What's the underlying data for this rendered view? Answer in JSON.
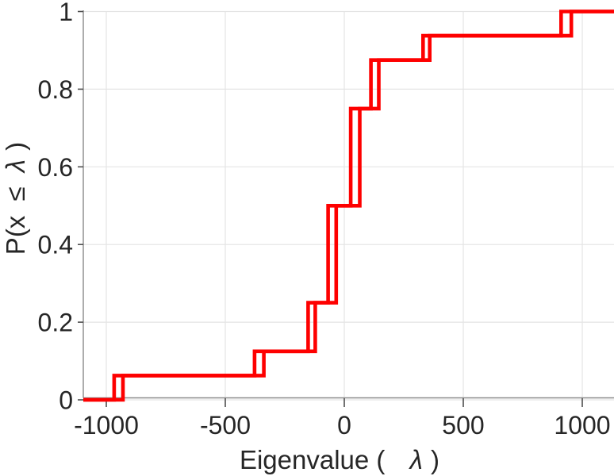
{
  "figure": {
    "background": "#ffffff"
  },
  "chart_data": {
    "type": "line",
    "subtype": "ecdf-staircase",
    "title": "",
    "xlabel": "Eigenvalue (  λ)",
    "xlabel_parts": {
      "prefix": "Eigenvalue (",
      "symbol": "λ",
      "suffix": ")"
    },
    "ylabel": "P(x ≤ λ)",
    "ylabel_parts": {
      "prefix": "P(x",
      "leq": "≤",
      "symbol": "λ",
      "suffix": ")"
    },
    "xlim": [
      -1096.7,
      1133.3
    ],
    "ylim": [
      0,
      1
    ],
    "xticks": [
      -1000,
      -500,
      0,
      500,
      1000
    ],
    "xtick_labels": [
      "-1000",
      "-500",
      "0",
      "500",
      "1000"
    ],
    "yticks": [
      0,
      0.2,
      0.4,
      0.6,
      0.8,
      1
    ],
    "ytick_labels": [
      "0",
      "0.2",
      "0.4",
      "0.6",
      "0.8",
      "1"
    ],
    "grid": true,
    "legend": null,
    "colors": {
      "line": "#fe0000",
      "grid": "#e4e4e4",
      "axis": "#8a8a8a",
      "tick": "#4f4f4f",
      "text": "#262626"
    },
    "levels": [
      0,
      0.0625,
      0.125,
      0.25,
      0.5,
      0.75,
      0.875,
      0.9375,
      1
    ],
    "series": [
      {
        "name": "ecdf-step-curve-1",
        "jump_x": [
          -967,
          -377,
          -152,
          -68,
          27,
          112,
          331,
          911
        ]
      },
      {
        "name": "ecdf-step-curve-2",
        "jump_x": [
          -930,
          -338,
          -122,
          -34,
          65,
          145,
          359,
          954
        ]
      }
    ]
  }
}
